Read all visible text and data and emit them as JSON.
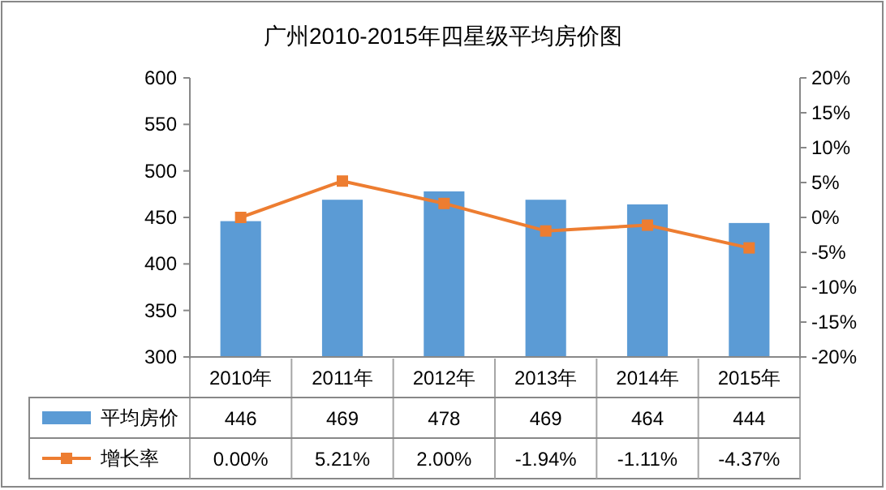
{
  "chart_data": {
    "type": "bar",
    "title": "广州2010-2015年四星级平均房价图",
    "categories": [
      "2010年",
      "2011年",
      "2012年",
      "2013年",
      "2014年",
      "2015年"
    ],
    "series": [
      {
        "name": "平均房价",
        "color": "#5b9bd5",
        "values": [
          446,
          469,
          478,
          469,
          464,
          444
        ],
        "value_labels": [
          "446",
          "469",
          "478",
          "469",
          "464",
          "444"
        ]
      },
      {
        "name": "增长率",
        "type": "line",
        "axis": "y2",
        "color": "#ed7d31",
        "marker": "square",
        "values": [
          0,
          5.21,
          2.0,
          -1.94,
          -1.11,
          -4.37
        ],
        "value_labels": [
          "0.00%",
          "5.21%",
          "2.00%",
          "-1.94%",
          "-1.11%",
          "-4.37%"
        ]
      }
    ],
    "ylim": [
      300,
      600
    ],
    "yticks": [
      300,
      350,
      400,
      450,
      500,
      550,
      600
    ],
    "y2lim": [
      -20,
      20
    ],
    "y2ticks": [
      {
        "value": -20,
        "label": "-20%"
      },
      {
        "value": -15,
        "label": "-15%"
      },
      {
        "value": -10,
        "label": "-10%"
      },
      {
        "value": -5,
        "label": "-5%"
      },
      {
        "value": 0,
        "label": "0%"
      },
      {
        "value": 5,
        "label": "5%"
      },
      {
        "value": 10,
        "label": "10%"
      },
      {
        "value": 15,
        "label": "15%"
      },
      {
        "value": 20,
        "label": "20%"
      }
    ],
    "legend": "bottom"
  }
}
